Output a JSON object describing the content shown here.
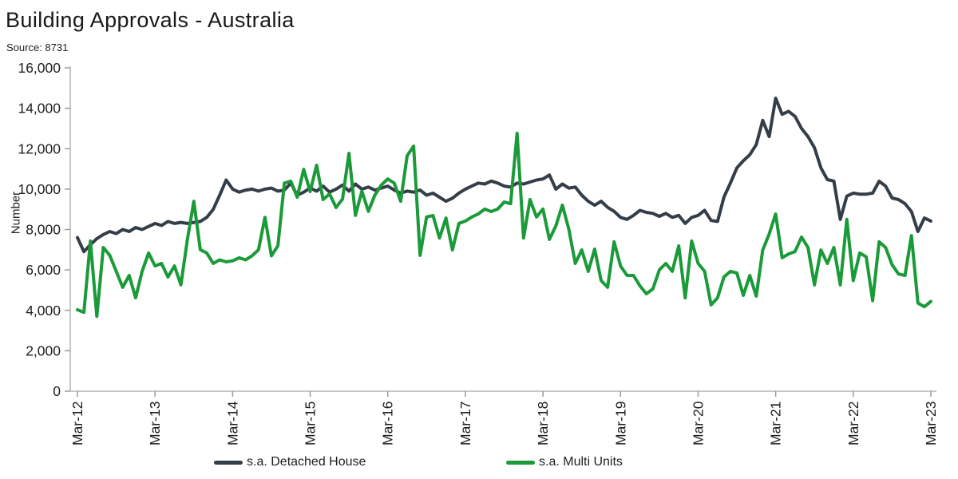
{
  "header": {
    "title": "Building Approvals - Australia",
    "source": "Source: 8731"
  },
  "chart_data": {
    "type": "line",
    "title": "Building Approvals - Australia",
    "subtitle": "Source: 8731",
    "ylabel": "Number",
    "xlabel": "",
    "ylim": [
      0,
      16000
    ],
    "y_tick_step": 2000,
    "grid": false,
    "legend_position": "bottom",
    "x_frequency": "monthly",
    "x_range": [
      "Mar-12",
      "Mar-23"
    ],
    "x_ticks": [
      "Mar-12",
      "Mar-13",
      "Mar-14",
      "Mar-15",
      "Mar-16",
      "Mar-17",
      "Mar-18",
      "Mar-19",
      "Mar-20",
      "Mar-21",
      "Mar-22",
      "Mar-23"
    ],
    "axis_color": "#b5b5b5",
    "tick_color": "#9b9b9b",
    "text_color": "#202020",
    "series": [
      {
        "name": "s.a. Detached House",
        "color": "#343e48",
        "values": [
          7600,
          6900,
          7250,
          7550,
          7750,
          7900,
          7800,
          8000,
          7900,
          8100,
          8000,
          8150,
          8300,
          8200,
          8400,
          8300,
          8350,
          8300,
          8350,
          8400,
          8600,
          9000,
          9700,
          10450,
          10000,
          9850,
          9950,
          10000,
          9900,
          10000,
          10050,
          9900,
          9950,
          10300,
          9700,
          9850,
          10050,
          9900,
          10150,
          9850,
          10000,
          10200,
          9900,
          10250,
          10000,
          10100,
          9950,
          10050,
          10150,
          9950,
          9800,
          9900,
          9850,
          9950,
          9700,
          9800,
          9600,
          9400,
          9550,
          9800,
          10000,
          10150,
          10300,
          10250,
          10400,
          10300,
          10150,
          10100,
          10300,
          10250,
          10350,
          10450,
          10500,
          10700,
          10000,
          10250,
          10050,
          10100,
          9700,
          9400,
          9200,
          9400,
          9100,
          8900,
          8600,
          8500,
          8700,
          8950,
          8850,
          8800,
          8650,
          8800,
          8600,
          8700,
          8300,
          8600,
          8700,
          8950,
          8450,
          8400,
          9600,
          10300,
          11050,
          11400,
          11700,
          12200,
          13400,
          12600,
          14500,
          13700,
          13850,
          13600,
          13000,
          12600,
          12050,
          11050,
          10470,
          10400,
          8500,
          9650,
          9800,
          9750,
          9750,
          9800,
          10390,
          10150,
          9560,
          9480,
          9280,
          8890,
          7900,
          8570,
          8420
        ]
      },
      {
        "name": "s.a. Multi Units",
        "color": "#1a9a38",
        "values": [
          4030,
          3900,
          7430,
          3700,
          7110,
          6720,
          5930,
          5140,
          5730,
          4620,
          5930,
          6840,
          6200,
          6320,
          5650,
          6200,
          5260,
          7500,
          9400,
          7000,
          6840,
          6320,
          6500,
          6400,
          6450,
          6600,
          6500,
          6700,
          7000,
          8600,
          6700,
          7200,
          10300,
          10390,
          9600,
          10980,
          9880,
          11180,
          9480,
          9760,
          9090,
          9500,
          11770,
          8700,
          9900,
          8900,
          9700,
          10200,
          10500,
          10300,
          9400,
          11650,
          12130,
          6720,
          8620,
          8690,
          7580,
          8570,
          6990,
          8300,
          8420,
          8620,
          8770,
          9010,
          8890,
          9010,
          9360,
          9280,
          12760,
          7580,
          9480,
          8620,
          9010,
          7510,
          8180,
          9210,
          8020,
          6320,
          6990,
          5930,
          7030,
          5470,
          5140,
          7390,
          6200,
          5730,
          5730,
          5210,
          4820,
          5060,
          6000,
          6320,
          5930,
          7190,
          4620,
          7430,
          6320,
          5930,
          4270,
          4620,
          5650,
          5930,
          5850,
          4740,
          5730,
          4700,
          6990,
          7780,
          8770,
          6600,
          6790,
          6910,
          7630,
          7110,
          5260,
          6990,
          6320,
          7110,
          5260,
          8500,
          5470,
          6840,
          6650,
          4480,
          7390,
          7110,
          6260,
          5800,
          5730,
          7700,
          4360,
          4180,
          4440
        ]
      }
    ]
  }
}
